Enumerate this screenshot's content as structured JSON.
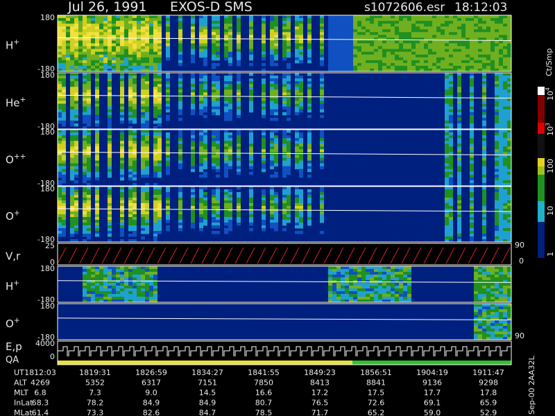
{
  "header": {
    "date": "Jul 26, 1991",
    "instrument": "EXOS-D SMS",
    "file": "s1072606.esr",
    "time": "18:12:03"
  },
  "panels": [
    {
      "label": {
        "base": "H",
        "sup": "+"
      },
      "top": "180",
      "bottom": "-180"
    },
    {
      "label": {
        "base": "He",
        "sup": "+"
      },
      "top": "180",
      "bottom": "-180"
    },
    {
      "label": {
        "base": "O",
        "sup": "++"
      },
      "top": "180",
      "bottom": "-180"
    },
    {
      "label": {
        "base": "O",
        "sup": "+"
      },
      "top": "180",
      "bottom": "-180"
    },
    {
      "label": {
        "base": "V,r"
      },
      "top": "25",
      "bottom": "0",
      "right_top": "90",
      "right_bottom": "0"
    },
    {
      "label": {
        "base": "H",
        "sup": "+"
      },
      "top": "180",
      "bottom": "-180"
    },
    {
      "label": {
        "base": "O",
        "sup": "+"
      },
      "top": "180",
      "bottom": "-180",
      "right_bottom": "90"
    },
    {
      "label": {
        "base": "E,p"
      },
      "label2": "QA",
      "top": "4000",
      "bottom": "0"
    }
  ],
  "colorbar": {
    "title": "Ct/Smp",
    "labels": [
      {
        "base": "10",
        "sup": "4"
      },
      {
        "base": "10",
        "sup": "3"
      },
      {
        "base": "100"
      },
      {
        "base": "10"
      },
      {
        "base": "1"
      }
    ]
  },
  "table": {
    "rows": [
      {
        "label": "UT",
        "cells": [
          "1812:03",
          "1819:31",
          "1826:59",
          "1834:27",
          "1841:55",
          "1849:23",
          "1856:51",
          "1904:19",
          "1911:47"
        ]
      },
      {
        "label": "ALT",
        "cells": [
          "4269",
          "5352",
          "6317",
          "7151",
          "7850",
          "8413",
          "8841",
          "9136",
          "9298"
        ]
      },
      {
        "label": "MLT",
        "cells": [
          "6.8",
          "7.3",
          "9.0",
          "14.5",
          "16.6",
          "17.2",
          "17.5",
          "17.7",
          "17.8"
        ]
      },
      {
        "label": "InLat",
        "cells": [
          "68.3",
          "78.2",
          "84.9",
          "84.9",
          "80.7",
          "76.5",
          "72.6",
          "69.1",
          "65.9"
        ]
      },
      {
        "label": "MLat",
        "cells": [
          "61.4",
          "73.3",
          "82.6",
          "84.7",
          "78.5",
          "71.7",
          "65.2",
          "59.0",
          "52.9"
        ]
      }
    ]
  },
  "footer_code": "Sep-00 2AA32L"
}
